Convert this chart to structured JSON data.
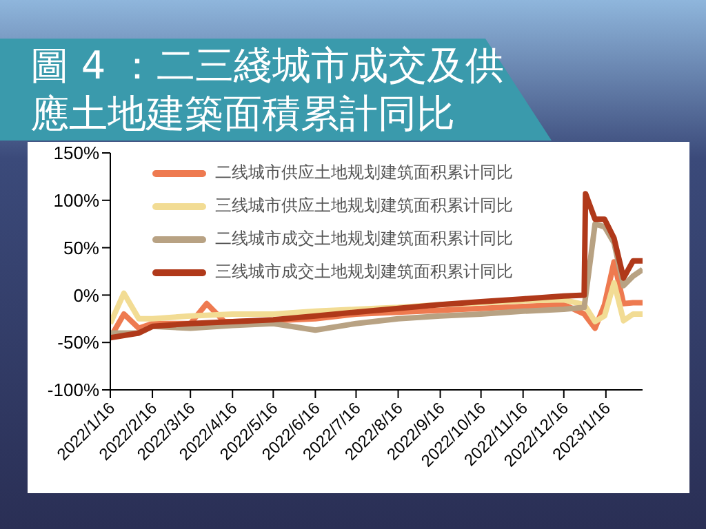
{
  "chart_data": {
    "type": "line",
    "title": "圖 4 ：二三綫城市成交及供應土地建築面積累計同比",
    "xlim": [
      "2022-01-16",
      "2023-02-12"
    ],
    "xticks": [
      {
        "value": "2022-01-16",
        "label": "2022/1/16"
      },
      {
        "value": "2022-02-16",
        "label": "2022/2/16"
      },
      {
        "value": "2022-03-16",
        "label": "2022/3/16"
      },
      {
        "value": "2022-04-16",
        "label": "2022/4/16"
      },
      {
        "value": "2022-05-16",
        "label": "2022/5/16"
      },
      {
        "value": "2022-06-16",
        "label": "2022/6/16"
      },
      {
        "value": "2022-07-16",
        "label": "2022/7/16"
      },
      {
        "value": "2022-08-16",
        "label": "2022/8/16"
      },
      {
        "value": "2022-09-16",
        "label": "2022/9/16"
      },
      {
        "value": "2022-10-16",
        "label": "2022/10/16"
      },
      {
        "value": "2022-11-16",
        "label": "2022/11/16"
      },
      {
        "value": "2022-12-16",
        "label": "2022/12/16"
      },
      {
        "value": "2023-01-16",
        "label": "2023/1/16"
      }
    ],
    "ylim": [
      -100,
      150
    ],
    "yticks": [
      {
        "value": -100,
        "label": "-100%"
      },
      {
        "value": -50,
        "label": "-50%"
      },
      {
        "value": 0,
        "label": "0%"
      },
      {
        "value": 50,
        "label": "50%"
      },
      {
        "value": 100,
        "label": "100%"
      },
      {
        "value": 150,
        "label": "150%"
      }
    ],
    "grid": false,
    "legend": "top",
    "marker": "none",
    "line_style": "solid",
    "series": [
      {
        "name": "二线城市供应土地规划建筑面积累计同比",
        "color": "#ee7a50",
        "x": [
          "2022-01-16",
          "2022-01-26",
          "2022-02-06",
          "2022-02-16",
          "2022-03-16",
          "2022-03-28",
          "2022-04-10",
          "2022-04-16",
          "2022-05-16",
          "2022-06-16",
          "2022-07-16",
          "2022-08-16",
          "2022-09-16",
          "2022-10-16",
          "2022-11-16",
          "2022-12-16",
          "2022-12-31",
          "2023-01-08",
          "2023-01-15",
          "2023-01-22",
          "2023-01-29",
          "2023-02-05",
          "2023-02-12"
        ],
        "values": [
          -45,
          -20,
          -35,
          -30,
          -30,
          -9,
          -28,
          -28,
          -27,
          -25,
          -20,
          -18,
          -16,
          -14,
          -12,
          -10,
          -20,
          -35,
          -10,
          35,
          -9,
          -8,
          -8
        ]
      },
      {
        "name": "三线城市供应土地规划建筑面积累计同比",
        "color": "#f2dc94",
        "x": [
          "2022-01-16",
          "2022-01-26",
          "2022-02-06",
          "2022-02-16",
          "2022-03-16",
          "2022-04-16",
          "2022-05-16",
          "2022-06-16",
          "2022-07-16",
          "2022-08-16",
          "2022-09-16",
          "2022-10-16",
          "2022-11-16",
          "2022-12-16",
          "2022-12-31",
          "2023-01-08",
          "2023-01-15",
          "2023-01-22",
          "2023-01-29",
          "2023-02-05",
          "2023-02-12"
        ],
        "values": [
          -30,
          2,
          -25,
          -25,
          -22,
          -20,
          -20,
          -17,
          -15,
          -13,
          -10,
          -8,
          -6,
          -5,
          -10,
          -28,
          -22,
          13,
          -27,
          -20,
          -20
        ]
      },
      {
        "name": "二线城市成交土地规划建筑面积累计同比",
        "color": "#b8a283",
        "x": [
          "2022-01-16",
          "2022-02-06",
          "2022-02-16",
          "2022-03-16",
          "2022-04-16",
          "2022-05-16",
          "2022-06-16",
          "2022-07-16",
          "2022-08-16",
          "2022-09-16",
          "2022-10-16",
          "2022-11-16",
          "2022-12-16",
          "2022-12-31",
          "2023-01-08",
          "2023-01-15",
          "2023-01-22",
          "2023-01-29",
          "2023-02-05",
          "2023-02-12"
        ],
        "values": [
          -40,
          -40,
          -33,
          -35,
          -32,
          -30,
          -37,
          -30,
          -25,
          -22,
          -20,
          -17,
          -15,
          -13,
          75,
          72,
          55,
          10,
          20,
          27
        ]
      },
      {
        "name": "三线城市成交土地规划建筑面积累计同比",
        "color": "#b0391a",
        "x": [
          "2022-01-16",
          "2022-02-06",
          "2022-02-16",
          "2022-03-16",
          "2022-04-16",
          "2022-05-16",
          "2022-06-16",
          "2022-07-16",
          "2022-08-16",
          "2022-09-16",
          "2022-10-16",
          "2022-11-16",
          "2022-12-16",
          "2022-12-31",
          "2023-01-01",
          "2023-01-08",
          "2023-01-15",
          "2023-01-22",
          "2023-01-29",
          "2023-02-05",
          "2023-02-12"
        ],
        "values": [
          -45,
          -40,
          -33,
          -30,
          -28,
          -26,
          -22,
          -18,
          -14,
          -10,
          -7,
          -4,
          -1,
          0,
          107,
          80,
          80,
          60,
          18,
          36,
          36
        ]
      }
    ]
  }
}
